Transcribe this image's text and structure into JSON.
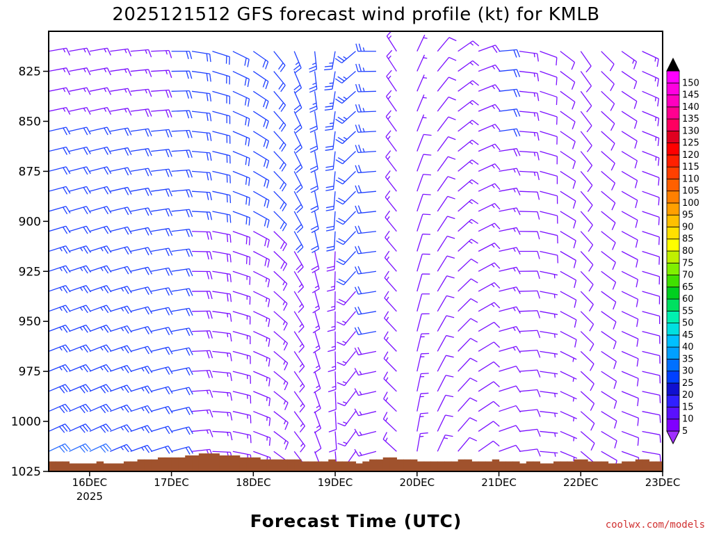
{
  "page_title": "2025121512 GFS forecast wind profile (kt) for KMLB",
  "credit": "coolwx.com/models",
  "colors": {
    "terrain": "#a0522d",
    "barb_low": "#7a10ff",
    "barb_mid": "#1e40ff",
    "barb_high": "#2e70ff"
  },
  "chart_data": {
    "type": "wind-barb-time-height",
    "title": "2025121512 GFS forecast wind profile (kt) for KMLB",
    "xlabel": "Forecast Time (UTC)",
    "ylabel": "",
    "x_tick_labels": [
      "16DEC",
      "17DEC",
      "18DEC",
      "19DEC",
      "20DEC",
      "21DEC",
      "22DEC",
      "23DEC"
    ],
    "x_year_label": "2025",
    "x_range_days": [
      15.5,
      23.0
    ],
    "y_tick_labels": [
      825,
      850,
      875,
      900,
      925,
      950,
      975,
      1000,
      1025
    ],
    "ylim_hpa": [
      1025,
      805
    ],
    "levels_hpa": [
      1015,
      1005,
      995,
      985,
      975,
      965,
      955,
      945,
      935,
      925,
      915,
      905,
      895,
      885,
      875,
      865,
      855,
      845,
      835,
      825,
      815
    ],
    "time_step_hours": 6,
    "colorbar": {
      "label_values": [
        5,
        10,
        15,
        20,
        25,
        30,
        35,
        40,
        45,
        50,
        55,
        60,
        65,
        70,
        75,
        80,
        85,
        90,
        95,
        100,
        105,
        110,
        115,
        120,
        125,
        130,
        135,
        140,
        145,
        150
      ],
      "colors": [
        "#8000ff",
        "#5a10ff",
        "#3020ff",
        "#1010d0",
        "#0040ff",
        "#0070ff",
        "#00a0ff",
        "#00c0ff",
        "#00e0e0",
        "#00f0b0",
        "#00e060",
        "#00d020",
        "#40e000",
        "#80f000",
        "#c0f000",
        "#ffff00",
        "#ffe000",
        "#ffc000",
        "#ffa000",
        "#ff8000",
        "#ff6000",
        "#ff4000",
        "#ff2000",
        "#ff0000",
        "#e00020",
        "#ff0060",
        "#ff0090",
        "#ff00c0",
        "#ff00e0",
        "#ff00ff"
      ]
    },
    "surface_pressure_hpa": [
      1020,
      1020,
      1020,
      1021,
      1021,
      1021,
      1021,
      1020,
      1021,
      1021,
      1021,
      1020,
      1020,
      1019,
      1019,
      1019,
      1018,
      1018,
      1018,
      1018,
      1017,
      1017,
      1016,
      1016,
      1016,
      1017,
      1017,
      1017,
      1018,
      1018,
      1018,
      1019,
      1019,
      1019,
      1019,
      1019,
      1019,
      1020,
      1020,
      1020,
      1020,
      1019,
      1020,
      1020,
      1020,
      1021,
      1020,
      1019,
      1019,
      1018,
      1018,
      1019,
      1019,
      1019,
      1020,
      1020,
      1020,
      1020,
      1020,
      1020,
      1019,
      1019,
      1020,
      1020,
      1020,
      1019,
      1020,
      1020,
      1020,
      1021,
      1020,
      1020,
      1021,
      1021,
      1020,
      1020,
      1020,
      1019,
      1019,
      1020,
      1020,
      1020,
      1021,
      1021,
      1020,
      1020,
      1019,
      1019,
      1020,
      1020
    ],
    "wind_field_sampled": [
      {
        "time": "16DEC 00Z",
        "direction_deg": 65,
        "speed_kt_low": 30,
        "speed_kt_high": 15
      },
      {
        "time": "17DEC 00Z",
        "direction_deg": 75,
        "speed_kt_low": 18,
        "speed_kt_high": 18
      },
      {
        "time": "18DEC 00Z",
        "direction_deg": 110,
        "speed_kt_low": 15,
        "speed_kt_high": 20
      },
      {
        "time": "19DEC 00Z",
        "direction_deg": 175,
        "speed_kt_low": 10,
        "speed_kt_high": 25
      },
      {
        "time": "19DEC 12Z",
        "direction_deg": 255,
        "speed_kt_low": 15,
        "speed_kt_high": 25
      },
      {
        "time": "20DEC 00Z",
        "direction_deg": 10,
        "speed_kt_low": 15,
        "speed_kt_high": 5
      },
      {
        "time": "20DEC 12Z",
        "direction_deg": 40,
        "speed_kt_low": 10,
        "speed_kt_high": 15
      },
      {
        "time": "21DEC 00Z",
        "direction_deg": 70,
        "speed_kt_low": 10,
        "speed_kt_high": 20
      },
      {
        "time": "21DEC 12Z",
        "direction_deg": 95,
        "speed_kt_low": 5,
        "speed_kt_high": 10
      },
      {
        "time": "22DEC 00Z",
        "direction_deg": 130,
        "speed_kt_low": 8,
        "speed_kt_high": 10
      },
      {
        "time": "23DEC 00Z",
        "direction_deg": 90,
        "speed_kt_low": 10,
        "speed_kt_high": 15
      }
    ]
  }
}
